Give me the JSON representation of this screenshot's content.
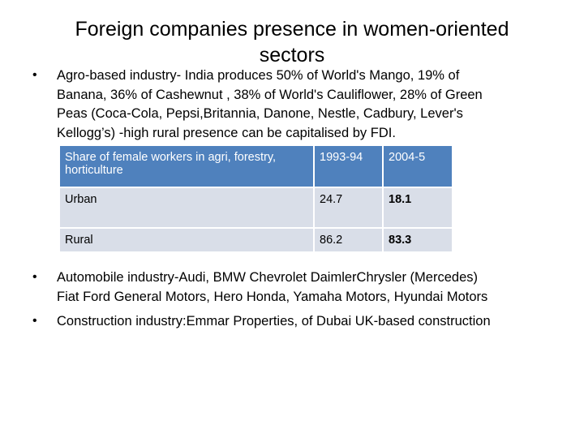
{
  "title": [
    "Foreign companies  presence in women-oriented",
    "sectors"
  ],
  "bullets": [
    {
      "lines": [
        "Agro-based industry-  India produces 50% of World's Mango, 19% of",
        "Banana, 36% of Cashewnut , 38% of World's Cauliflower, 28% of Green",
        "Peas  (Coca-Cola, Pepsi,Britannia, Danone, Nestle, Cadbury, Lever's",
        "Kellogg’s) -high rural presence can be capitalised by FDI."
      ]
    },
    {
      "lines": [
        "Automobile industry-Audi, BMW Chevrolet DaimlerChrysler (Mercedes)",
        "Fiat Ford General Motors, Hero Honda, Yamaha Motors, Hyundai Motors"
      ]
    },
    {
      "lines": [
        "Construction industry:Emmar Properties, of Dubai UK-based construction"
      ]
    }
  ],
  "table": {
    "header": [
      "Share of female workers in agri, forestry, horticulture",
      "1993-94",
      "2004-5"
    ],
    "rows": [
      [
        "Urban",
        "24.7",
        "18.1"
      ],
      [
        "Rural",
        "86.2",
        "83.3"
      ]
    ]
  }
}
